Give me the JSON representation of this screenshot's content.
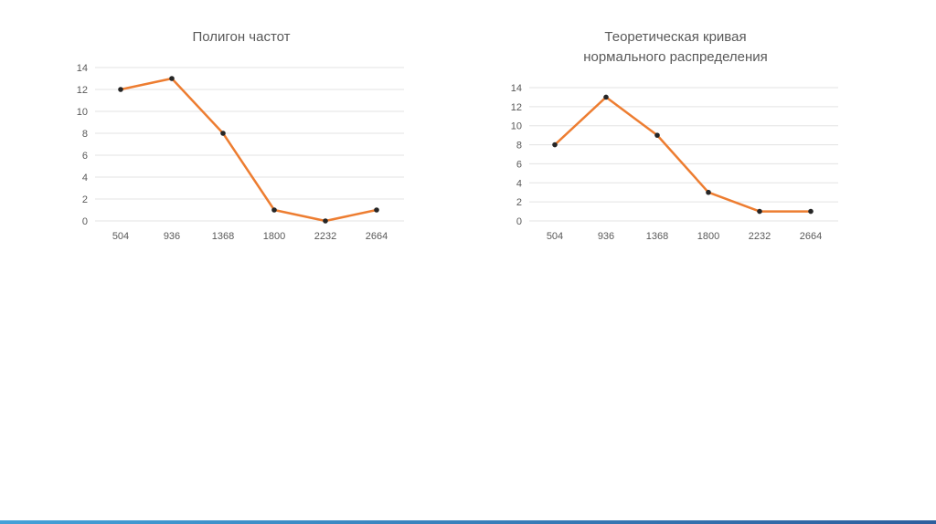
{
  "page": {
    "background": "#ffffff",
    "footer_bar": {
      "color_left": "#44a1d8",
      "color_right": "#2e5f9e"
    }
  },
  "chart_style": {
    "line_color": "#ED7D31",
    "marker_color": "#262626",
    "gridline_color": "#E3E3E3",
    "tick_label_color": "#595959",
    "title_color": "#595959",
    "legend": "none",
    "grid": "horizontal"
  },
  "chart_data": [
    {
      "type": "line",
      "title": "Полигон частот",
      "categories": [
        "504",
        "936",
        "1368",
        "1800",
        "2232",
        "2664"
      ],
      "values": [
        12,
        13,
        8,
        1,
        0,
        1
      ],
      "xlabel": "",
      "ylabel": "",
      "ylim": [
        0,
        14
      ],
      "yticks": [
        0,
        2,
        4,
        6,
        8,
        10,
        12,
        14
      ]
    },
    {
      "type": "line",
      "title": "Теоретическая кривая\nнормального распределения",
      "categories": [
        "504",
        "936",
        "1368",
        "1800",
        "2232",
        "2664"
      ],
      "values": [
        8,
        13,
        9,
        3,
        1,
        1
      ],
      "xlabel": "",
      "ylabel": "",
      "ylim": [
        0,
        14
      ],
      "yticks": [
        0,
        2,
        4,
        6,
        8,
        10,
        12,
        14
      ]
    }
  ]
}
